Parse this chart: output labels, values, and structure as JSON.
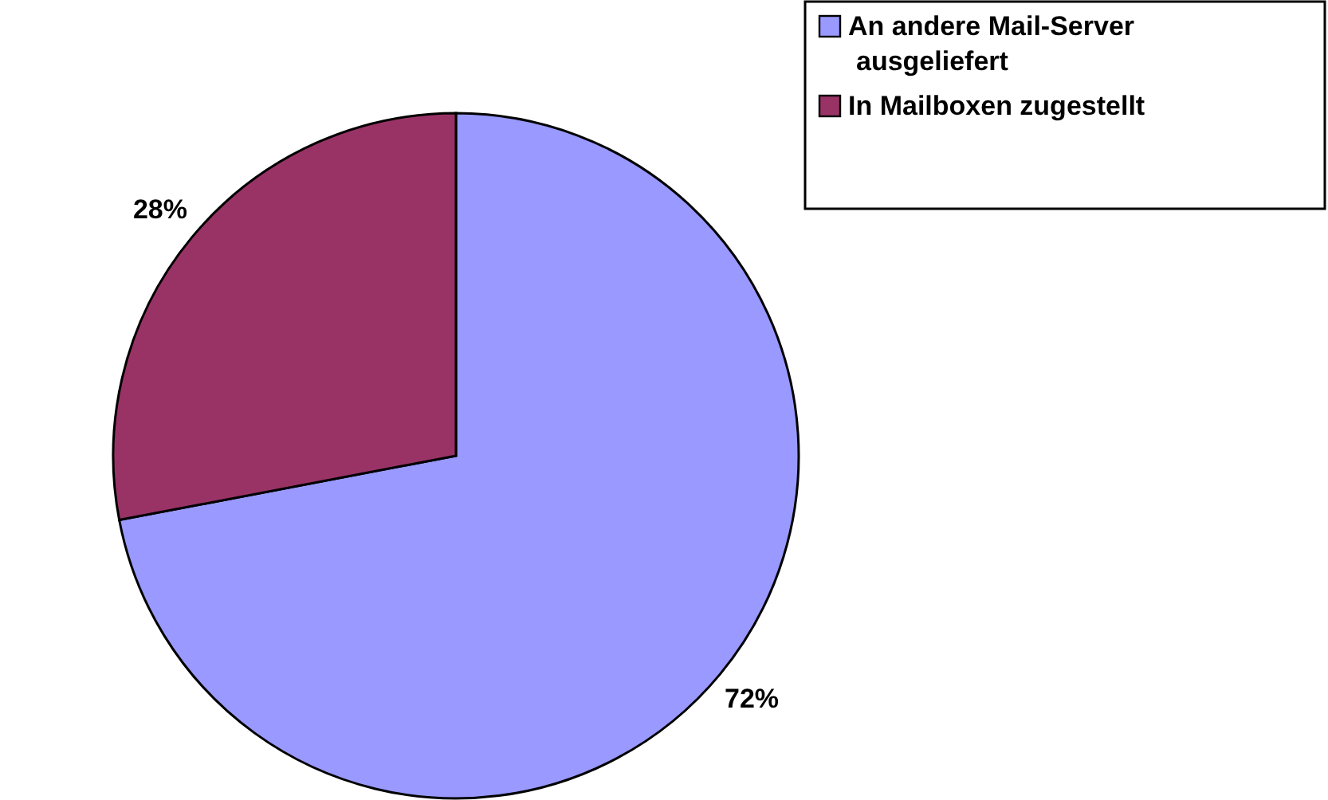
{
  "chart_data": {
    "type": "pie",
    "categories": [
      "An andere Mail-Server ausgeliefert",
      "In Mailboxen zugestellt"
    ],
    "values": [
      72,
      28
    ],
    "colors": [
      "#9999ff",
      "#993366"
    ],
    "value_labels": [
      "72%",
      "28%"
    ],
    "legend": "top right"
  }
}
